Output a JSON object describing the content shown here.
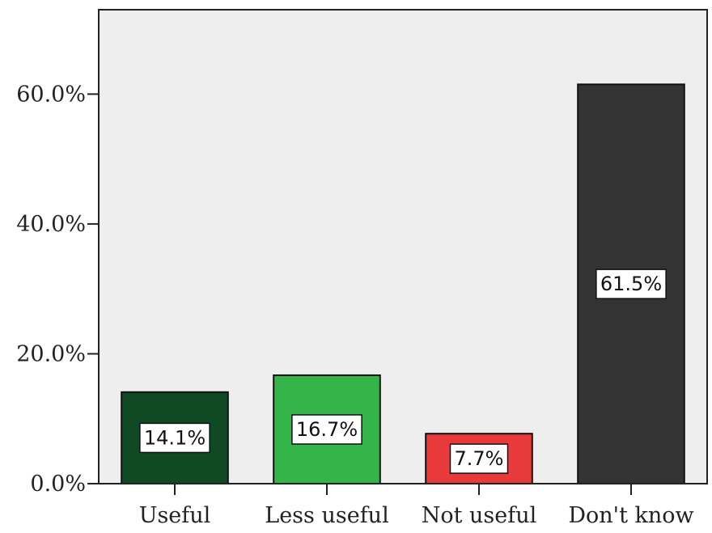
{
  "chart_data": {
    "type": "bar",
    "title": "",
    "xlabel": "",
    "ylabel": "",
    "categories": [
      "Useful",
      "Less useful",
      "Not useful",
      "Don't know"
    ],
    "values": [
      14.1,
      16.7,
      7.7,
      61.5
    ],
    "data_labels": [
      "14.1%",
      "16.7%",
      "7.7%",
      "61.5%"
    ],
    "yticks": [
      0,
      20,
      40,
      60
    ],
    "ytick_labels": [
      "0.0%",
      "20.0%",
      "40.0%",
      "60.0%"
    ],
    "ylim": [
      0,
      73
    ],
    "grid": false,
    "legend": "none",
    "colors": {
      "bars": [
        "#0f4a24",
        "#33b54a",
        "#e8393b",
        "#333333"
      ],
      "plot_background": "#eeeeee",
      "axis": "#222222"
    }
  }
}
